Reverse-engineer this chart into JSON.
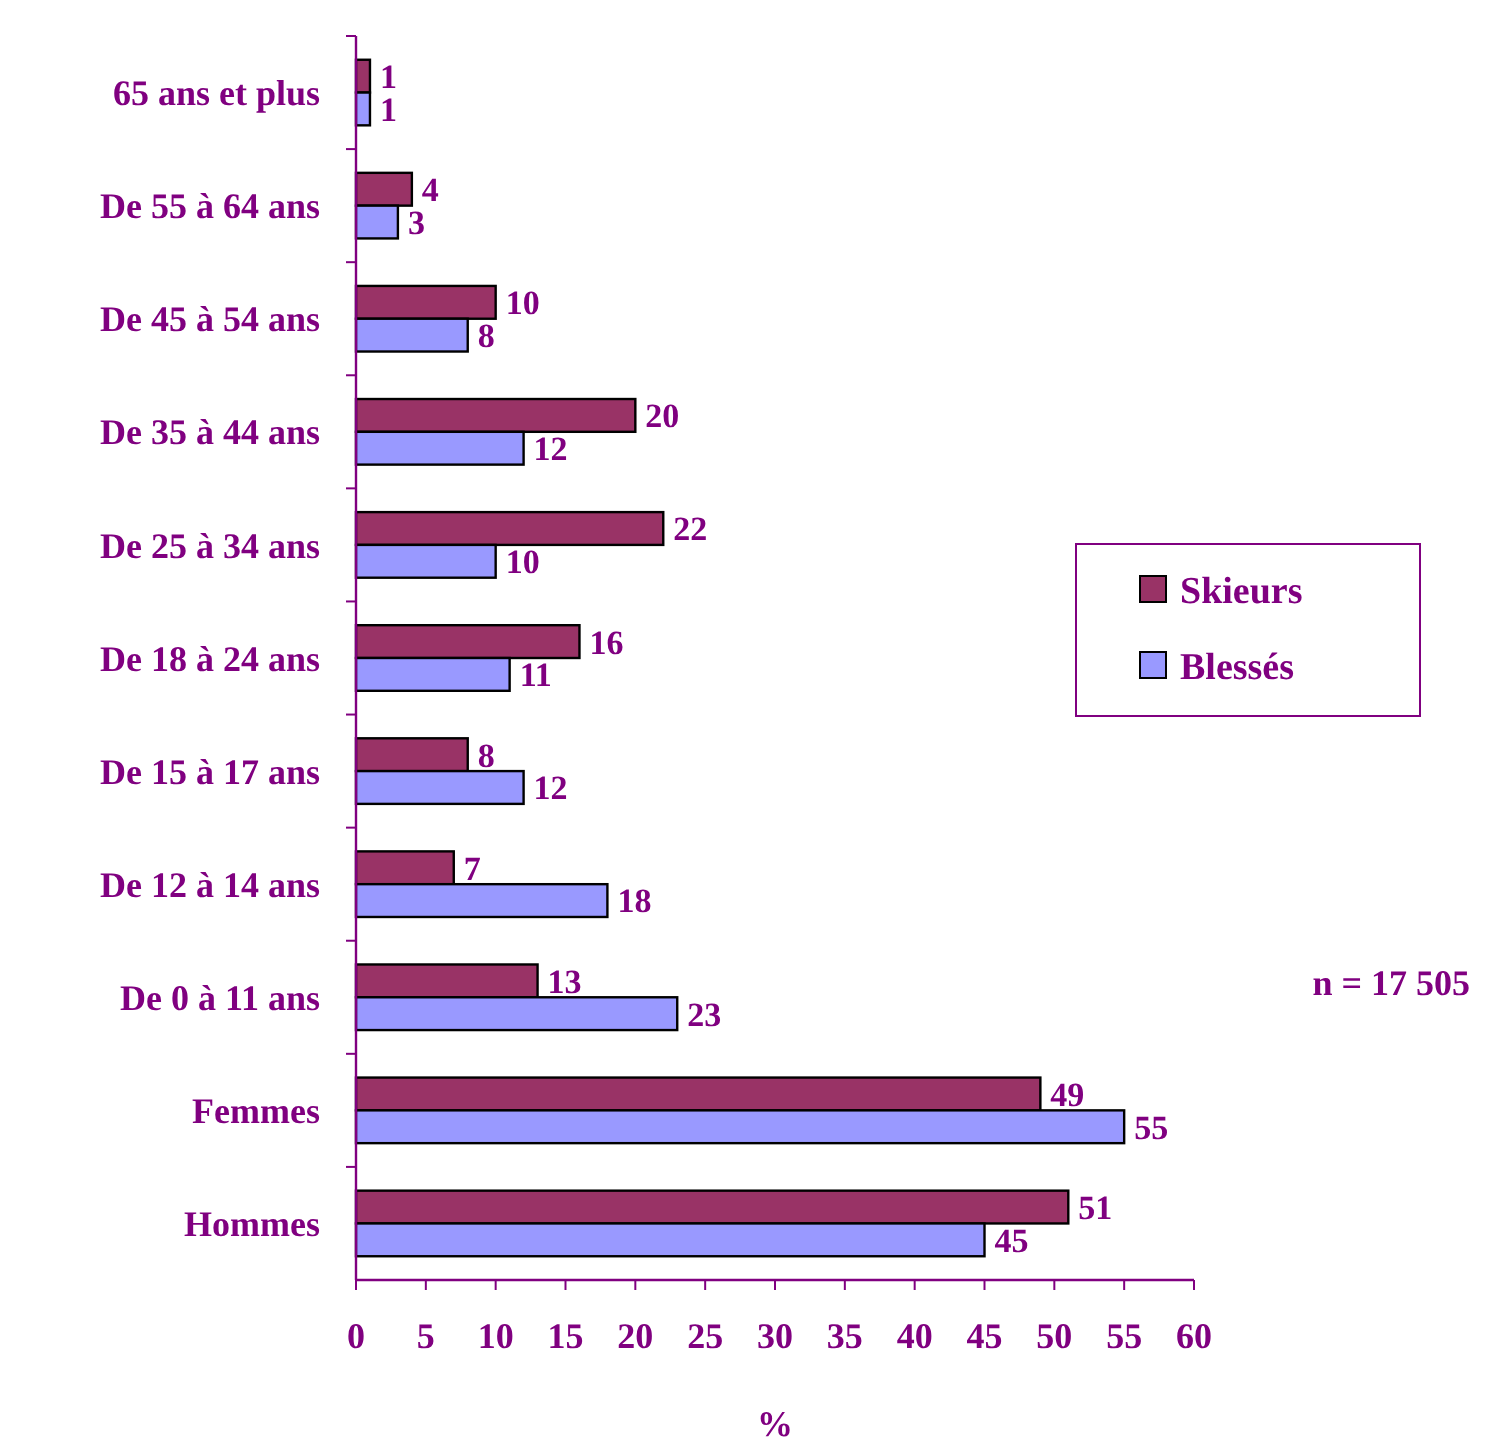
{
  "chart_data": {
    "type": "bar",
    "orientation": "horizontal",
    "xlabel": "%",
    "categories": [
      "65 ans et plus",
      "De 55 à 64 ans",
      "De 45 à 54 ans",
      "De 35 à 44 ans",
      "De 25 à 34 ans",
      "De 18 à 24 ans",
      "De 15 à 17 ans",
      "De 12 à 14 ans",
      "De 0 à 11 ans",
      "Femmes",
      "Hommes"
    ],
    "series": [
      {
        "name": "Skieurs",
        "color": "#993366",
        "values": [
          1,
          4,
          10,
          20,
          22,
          16,
          8,
          7,
          13,
          49,
          51
        ]
      },
      {
        "name": "Blessés",
        "color": "#9999ff",
        "values": [
          1,
          3,
          8,
          12,
          10,
          11,
          12,
          18,
          23,
          55,
          45
        ]
      }
    ],
    "xlim": [
      0,
      60
    ],
    "xticks": [
      0,
      5,
      10,
      15,
      20,
      25,
      30,
      35,
      40,
      45,
      50,
      55,
      60
    ],
    "data_labels": true,
    "legend": "right",
    "grid": false,
    "annotations": [
      "n = 17 505"
    ]
  }
}
